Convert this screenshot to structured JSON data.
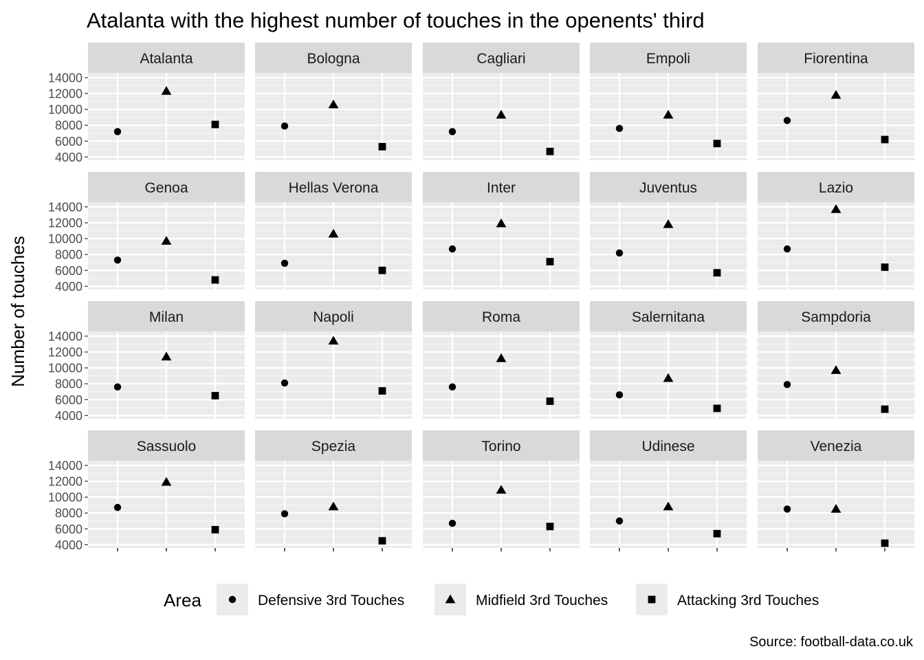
{
  "chart_data": {
    "type": "scatter",
    "title": "Atalanta with the highest number of touches in the openents' third",
    "ylabel": "Number of touches",
    "xlabel": "",
    "caption": "Source: football-data.co.uk",
    "ylim": [
      3600,
      14600
    ],
    "yticks": [
      4000,
      6000,
      8000,
      10000,
      12000,
      14000
    ],
    "grid": true,
    "legend": {
      "title": "Area",
      "position": "bottom",
      "entries": [
        {
          "name": "Defensive 3rd Touches",
          "shape": "circle"
        },
        {
          "name": "Midfield 3rd Touches",
          "shape": "triangle"
        },
        {
          "name": "Attacking 3rd Touches",
          "shape": "square"
        }
      ]
    },
    "categories": [
      "Defensive 3rd Touches",
      "Midfield 3rd Touches",
      "Attacking 3rd Touches"
    ],
    "panels": [
      {
        "team": "Atalanta",
        "values": [
          7200,
          12300,
          8100
        ]
      },
      {
        "team": "Bologna",
        "values": [
          7900,
          10600,
          5300
        ]
      },
      {
        "team": "Cagliari",
        "values": [
          7200,
          9300,
          4700
        ]
      },
      {
        "team": "Empoli",
        "values": [
          7600,
          9300,
          5700
        ]
      },
      {
        "team": "Fiorentina",
        "values": [
          8600,
          11800,
          6200
        ]
      },
      {
        "team": "Genoa",
        "values": [
          7300,
          9700,
          4800
        ]
      },
      {
        "team": "Hellas Verona",
        "values": [
          6900,
          10600,
          6000
        ]
      },
      {
        "team": "Inter",
        "values": [
          8700,
          11900,
          7100
        ]
      },
      {
        "team": "Juventus",
        "values": [
          8200,
          11800,
          5700
        ]
      },
      {
        "team": "Lazio",
        "values": [
          8700,
          13700,
          6400
        ]
      },
      {
        "team": "Milan",
        "values": [
          7600,
          11400,
          6500
        ]
      },
      {
        "team": "Napoli",
        "values": [
          8100,
          13400,
          7100
        ]
      },
      {
        "team": "Roma",
        "values": [
          7600,
          11200,
          5800
        ]
      },
      {
        "team": "Salernitana",
        "values": [
          6600,
          8700,
          4900
        ]
      },
      {
        "team": "Sampdoria",
        "values": [
          7900,
          9700,
          4800
        ]
      },
      {
        "team": "Sassuolo",
        "values": [
          8700,
          11900,
          5900
        ]
      },
      {
        "team": "Spezia",
        "values": [
          7900,
          8800,
          4500
        ]
      },
      {
        "team": "Torino",
        "values": [
          6700,
          10900,
          6300
        ]
      },
      {
        "team": "Udinese",
        "values": [
          7000,
          8800,
          5400
        ]
      },
      {
        "team": "Venezia",
        "values": [
          8500,
          8500,
          4200
        ]
      }
    ]
  }
}
